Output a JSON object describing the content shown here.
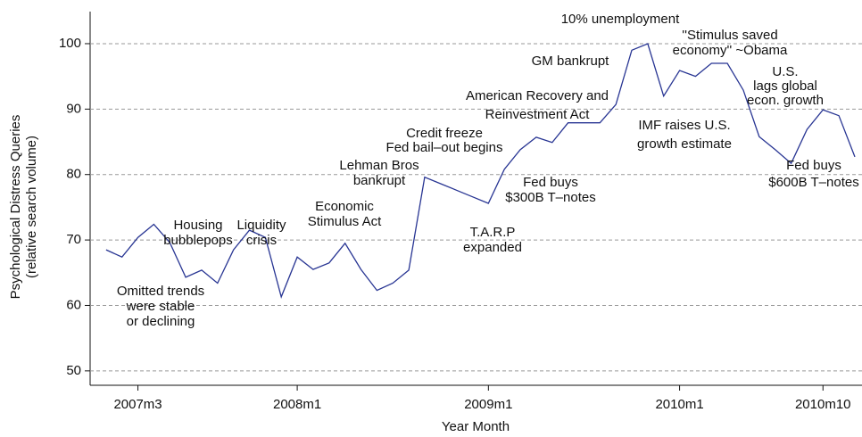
{
  "chart_data": {
    "type": "line",
    "x_label": "Year Month",
    "y_label": [
      "Psychological Distress Queries",
      "(relative search volume)"
    ],
    "categories": [
      null,
      null,
      "2007m3",
      null,
      null,
      null,
      null,
      null,
      null,
      null,
      null,
      null,
      "2008m1",
      null,
      null,
      null,
      null,
      null,
      null,
      null,
      null,
      null,
      null,
      null,
      "2009m1",
      null,
      null,
      null,
      null,
      null,
      null,
      null,
      null,
      null,
      null,
      null,
      "2010m1",
      null,
      null,
      null,
      null,
      null,
      null,
      null,
      null,
      "2010m10",
      null,
      null
    ],
    "series": [
      {
        "name": "Psychological Distress Queries",
        "color": "#283593",
        "values": [
          68.5,
          67.4,
          70.4,
          72.4,
          69.6,
          64.3,
          65.4,
          63.4,
          68.5,
          71.5,
          70.4,
          61.3,
          67.4,
          65.5,
          66.5,
          69.5,
          65.5,
          62.3,
          63.4,
          65.4,
          79.6,
          78.6,
          77.6,
          76.6,
          75.6,
          80.8,
          83.8,
          85.7,
          84.9,
          87.9,
          87.9,
          87.9,
          90.7,
          99.0,
          100,
          92.0,
          95.9,
          95.0,
          97.0,
          97.0,
          92.9,
          85.8,
          83.8,
          81.7,
          86.9,
          89.9,
          89.0,
          82.7
        ]
      }
    ],
    "ylim": [
      47.8,
      104.9
    ],
    "yticks": [
      50,
      60,
      70,
      80,
      90,
      100
    ],
    "grid": true,
    "annotations": [
      {
        "lines": [
          "Omitted trends",
          "were stable",
          "or declining"
        ]
      },
      {
        "lines": [
          "Housing",
          "bubblepops"
        ]
      },
      {
        "lines": [
          "Liquidity",
          "crisis"
        ]
      },
      {
        "lines": [
          "Economic",
          "Stimulus Act"
        ]
      },
      {
        "lines": [
          "Lehman Bros",
          "bankrupt"
        ]
      },
      {
        "lines": [
          "Credit freeze",
          "Fed bail–out begins"
        ]
      },
      {
        "lines": [
          "T.A.R.P",
          "expanded"
        ]
      },
      {
        "lines": [
          "American Recovery and",
          "Reinvestment Act"
        ]
      },
      {
        "lines": [
          "Fed buys",
          "$300B T–notes"
        ]
      },
      {
        "lines": [
          "GM bankrupt"
        ]
      },
      {
        "lines": [
          "10% unemployment"
        ]
      },
      {
        "lines": [
          "''Stimulus saved",
          "economy'' ~Obama"
        ]
      },
      {
        "lines": [
          "IMF raises U.S.",
          "growth estimate"
        ]
      },
      {
        "lines": [
          "U.S.",
          "lags global",
          "econ. growth"
        ]
      },
      {
        "lines": [
          "Fed buys",
          "$600B T–notes"
        ]
      }
    ]
  }
}
